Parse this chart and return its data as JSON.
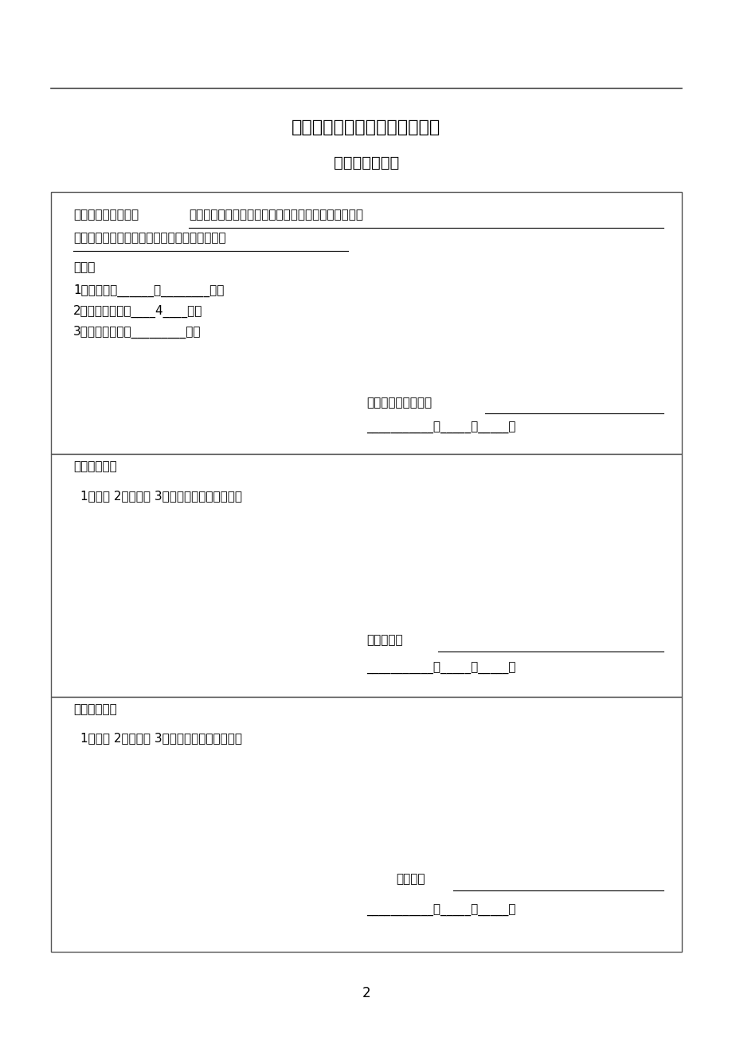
{
  "bg_color": "#ffffff",
  "text_color": "#000000",
  "company_name": "上海安正建设管理咨询有限公司",
  "doc_title": "监理规划审批表",
  "header": {
    "line1_normal": "我监理项目部已完成",
    "line1_underline": "上海应用技术学院奉贤新校区一期学生食堂、工训中心",
    "line2": "工程项目的监理规划的编制，请公司予以审批。",
    "attachment_title": "附件：",
    "item1": "1、设计文件______套________张；",
    "item2": "2、监理委托合同____4____份；",
    "item3": "3、项目特征资料_________份；",
    "sign1_label": "项目总监理工程师：",
    "date_line1": "___________年_____月_____日"
  },
  "review": {
    "title": "审核人意见：",
    "options": "1、同意 2、比同意 3、请按以下内容进行补充",
    "sign_label": "付总工程师",
    "date_line": "___________年_____月_____日"
  },
  "approve": {
    "title": "批准人意见：",
    "options": "1、同意 2、不同意 3、请按以下内容进行补充",
    "sign_label": "总工程师",
    "date_line": "___________年_____月_____日"
  },
  "page_number": "2",
  "font_size_title": 16,
  "font_size_subtitle": 14,
  "font_size_body": 11
}
